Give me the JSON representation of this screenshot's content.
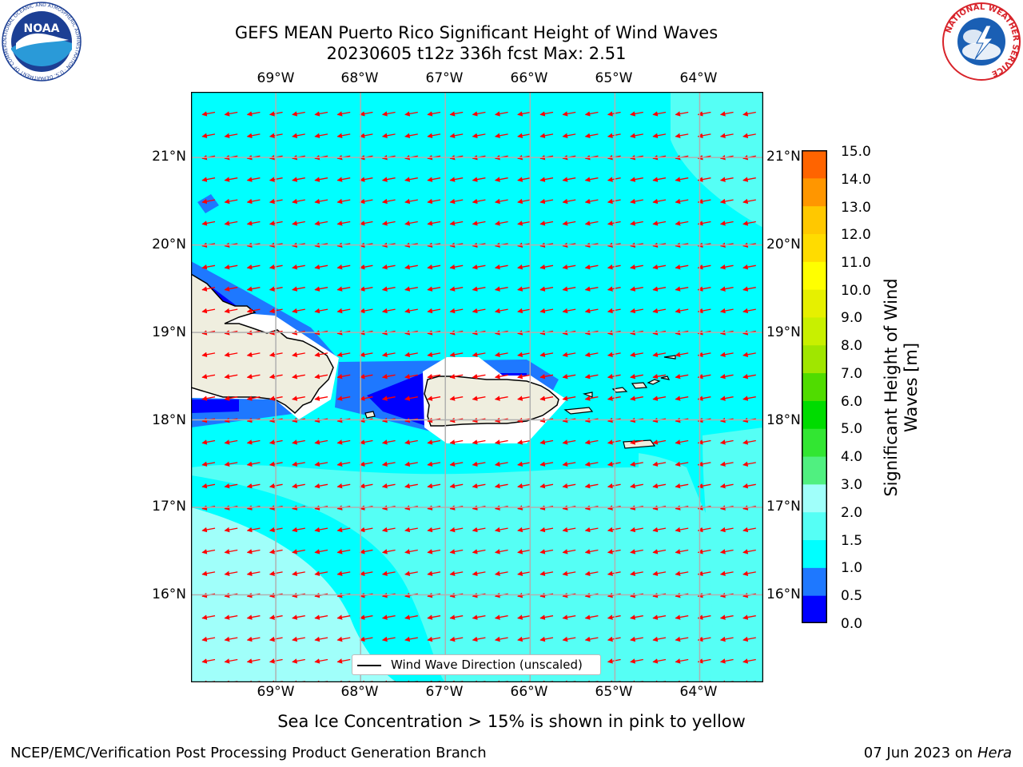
{
  "title_line1": "GEFS MEAN Puerto Rico Significant Height of Wind Waves",
  "title_line2": "20230605 t12z 336h fcst   Max: 2.51",
  "logos": {
    "noaa_text": "NOAA",
    "noaa_ring": "NATIONAL OCEANIC AND ATMOSPHERIC ADMINISTRATION · U.S. DEPARTMENT OF COMMERCE",
    "nws_ring": "NATIONAL WEATHER SERVICE"
  },
  "map": {
    "lon_labels": [
      "69°W",
      "68°W",
      "67°W",
      "66°W",
      "65°W",
      "64°W"
    ],
    "lat_labels": [
      "21°N",
      "20°N",
      "19°N",
      "18°N",
      "17°N",
      "16°N"
    ],
    "lon_range": [
      -70.0,
      -63.25
    ],
    "lat_range": [
      15.0,
      21.75
    ],
    "legend_text": "Wind Wave Direction (unscaled)",
    "arrow_color": "#ff0000",
    "wave_direction": "toward west"
  },
  "colorbar": {
    "title": "Significant Height of Wind Waves [m]",
    "ticks": [
      "15.0",
      "14.0",
      "13.0",
      "12.0",
      "11.0",
      "10.0",
      "9.0",
      "8.0",
      "7.0",
      "6.0",
      "5.0",
      "4.0",
      "3.0",
      "2.0",
      "1.5",
      "1.0",
      "0.5",
      "0.0"
    ],
    "colors": [
      "#0000ff",
      "#1e78ff",
      "#00ffff",
      "#55fff5",
      "#a0fffa",
      "#50f080",
      "#32e632",
      "#00dc00",
      "#50dc00",
      "#a0e600",
      "#c8f000",
      "#e6f000",
      "#ffff00",
      "#ffdc00",
      "#ffc800",
      "#ff9600",
      "#ff6400",
      "#ff3200",
      "#ff0000"
    ]
  },
  "chart_data": {
    "type": "heatmap",
    "title": "GEFS MEAN Puerto Rico Significant Height of Wind Waves",
    "subtitle": "20230605 t12z 336h fcst   Max: 2.51",
    "xlabel": "",
    "ylabel": "",
    "xlim": [
      -70.0,
      -63.25
    ],
    "ylim": [
      15.0,
      21.75
    ],
    "units": "m",
    "max_value": 2.51,
    "levels": [
      0.0,
      0.5,
      1.0,
      1.5,
      2.0,
      3.0,
      4.0,
      5.0,
      6.0,
      7.0,
      8.0,
      9.0,
      10.0,
      11.0,
      12.0,
      13.0,
      14.0,
      15.0
    ],
    "regions": [
      {
        "area": "open Caribbean / Atlantic",
        "range_m": [
          1.0,
          1.5
        ]
      },
      {
        "area": "southwest (south of 17°N, west of 67.5°W)",
        "range_m": [
          2.0,
          3.0
        ]
      },
      {
        "area": "east of 64.5°W south of 19°N",
        "range_m": [
          1.5,
          2.0
        ]
      },
      {
        "area": "Mona Passage",
        "range_m": [
          0.0,
          0.5
        ]
      },
      {
        "area": "lee of Hispaniola and Puerto Rico",
        "range_m": [
          0.5,
          1.0
        ]
      }
    ]
  },
  "note": "Sea Ice Concentration > 15% is shown in pink to yellow",
  "footer_left": "NCEP/EMC/Verification Post Processing Product Generation Branch",
  "footer_date": "07 Jun 2023 on",
  "footer_host": "Hera"
}
